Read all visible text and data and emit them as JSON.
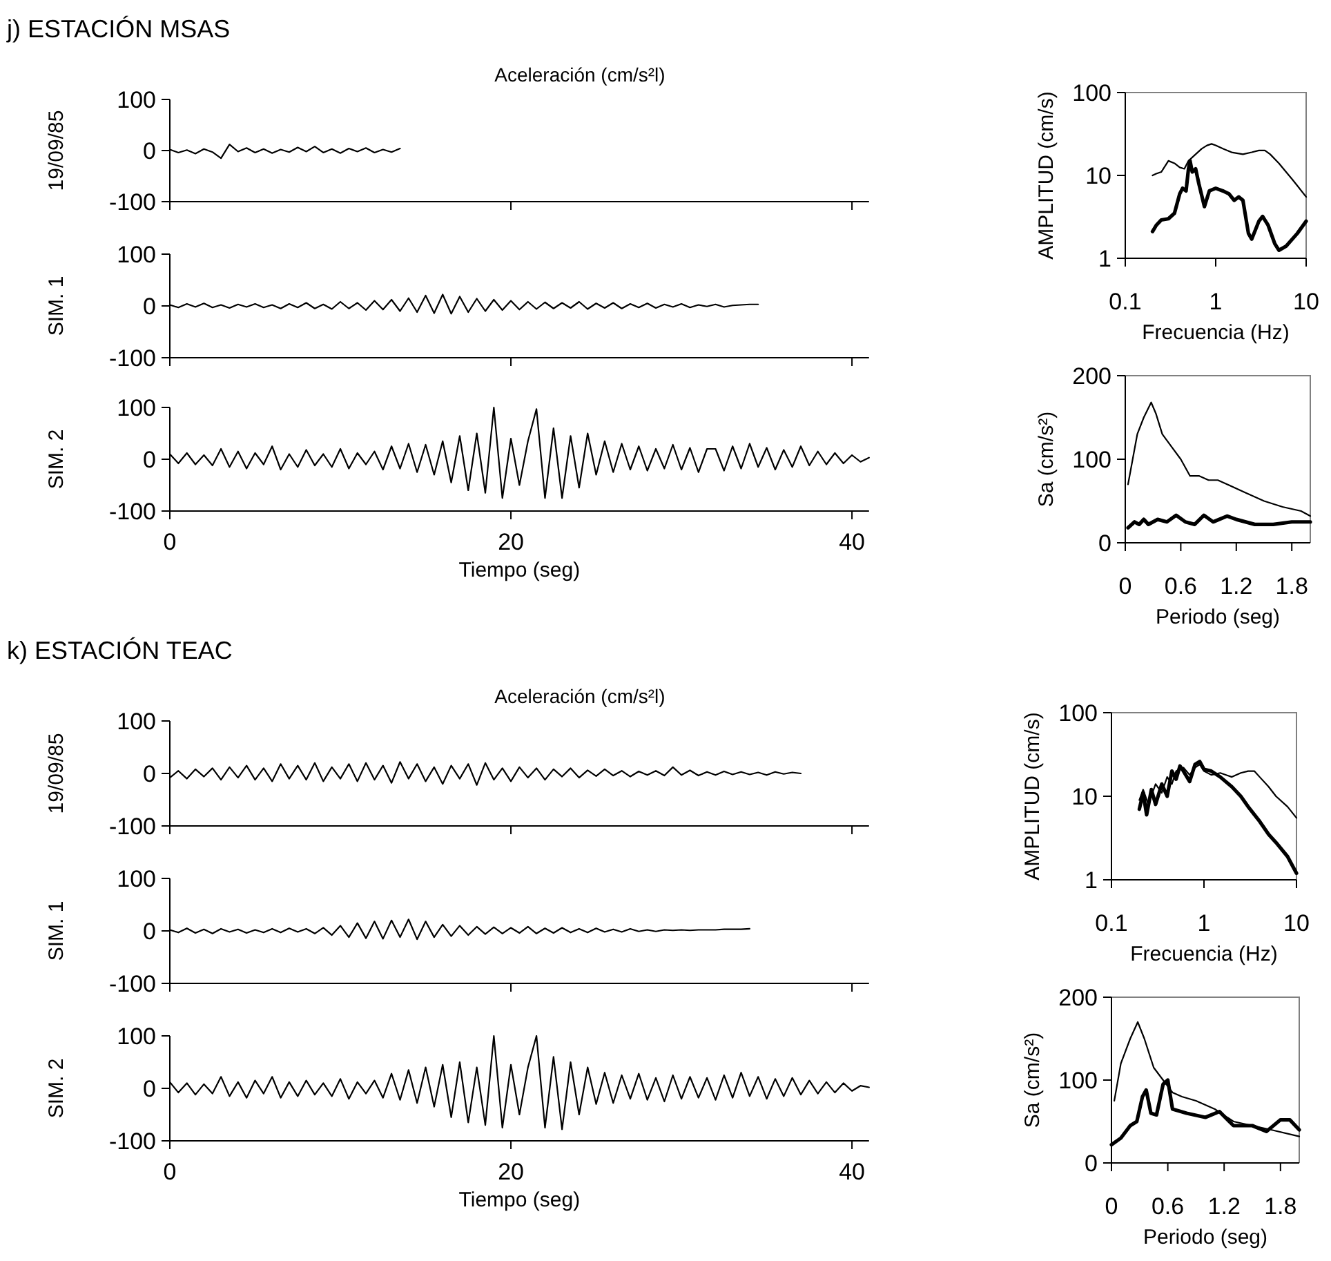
{
  "chart_data": [
    {
      "type": "line",
      "title": "j) ESTACIÓN MSAS",
      "subtitle": "Aceleración (cm/s²l)",
      "ylabel": "19/09/85",
      "xlim": [
        0,
        41
      ],
      "xticks": [
        0,
        20,
        40
      ],
      "ylim": [
        -100,
        100
      ],
      "yticks": [
        -100,
        0,
        100
      ],
      "tick_labels": "y",
      "series": [
        {
          "color": "#000000",
          "x": [
            0,
            0.5,
            1,
            1.5,
            2,
            2.5,
            3,
            3.5,
            4,
            4.5,
            5,
            5.5,
            6,
            6.5,
            7,
            7.5,
            8,
            8.5,
            9,
            9.5,
            10,
            10.5,
            11,
            11.5,
            12,
            12.5,
            13,
            13.5
          ],
          "values": [
            2,
            -4,
            1,
            -6,
            3,
            -3,
            -15,
            12,
            -2,
            5,
            -4,
            3,
            -5,
            2,
            -3,
            6,
            -2,
            8,
            -4,
            3,
            -5,
            4,
            -2,
            5,
            -4,
            2,
            -3,
            4
          ]
        }
      ]
    },
    {
      "type": "line",
      "ylabel": "SIM. 1",
      "xlim": [
        0,
        41
      ],
      "xticks": [
        0,
        20,
        40
      ],
      "ylim": [
        -100,
        100
      ],
      "yticks": [
        -100,
        0,
        100
      ],
      "tick_labels": "y",
      "series": [
        {
          "color": "#000000",
          "x": [
            0,
            0.5,
            1,
            1.5,
            2,
            2.5,
            3,
            3.5,
            4,
            4.5,
            5,
            5.5,
            6,
            6.5,
            7,
            7.5,
            8,
            8.5,
            9,
            9.5,
            10,
            10.5,
            11,
            11.5,
            12,
            12.5,
            13,
            13.5,
            14,
            14.5,
            15,
            15.5,
            16,
            16.5,
            17,
            17.5,
            18,
            18.5,
            19,
            19.5,
            20,
            20.5,
            21,
            21.5,
            22,
            22.5,
            23,
            23.5,
            24,
            24.5,
            25,
            25.5,
            26,
            26.5,
            27,
            27.5,
            28,
            28.5,
            29,
            29.5,
            30,
            30.5,
            31,
            31.5,
            32,
            32.5,
            33,
            33.5,
            34,
            34.5
          ],
          "values": [
            2,
            -3,
            4,
            -2,
            5,
            -3,
            2,
            -4,
            3,
            -2,
            4,
            -3,
            2,
            -5,
            4,
            -3,
            6,
            -5,
            3,
            -6,
            8,
            -5,
            6,
            -8,
            10,
            -7,
            12,
            -10,
            15,
            -12,
            20,
            -14,
            22,
            -15,
            18,
            -12,
            14,
            -10,
            12,
            -8,
            10,
            -7,
            8,
            -6,
            7,
            -5,
            6,
            -4,
            8,
            -6,
            5,
            -4,
            6,
            -5,
            4,
            -3,
            5,
            -4,
            3,
            -2,
            4,
            -3,
            2,
            -1,
            3,
            -2,
            1,
            2,
            3,
            3
          ]
        }
      ]
    },
    {
      "type": "line",
      "ylabel": "SIM. 2",
      "xlabel": "Tiempo (seg)",
      "xlim": [
        0,
        41
      ],
      "xticks": [
        0,
        20,
        40
      ],
      "ylim": [
        -100,
        100
      ],
      "yticks": [
        -100,
        0,
        100
      ],
      "series": [
        {
          "color": "#000000",
          "x": [
            0,
            0.5,
            1,
            1.5,
            2,
            2.5,
            3,
            3.5,
            4,
            4.5,
            5,
            5.5,
            6,
            6.5,
            7,
            7.5,
            8,
            8.5,
            9,
            9.5,
            10,
            10.5,
            11,
            11.5,
            12,
            12.5,
            13,
            13.5,
            14,
            14.5,
            15,
            15.5,
            16,
            16.5,
            17,
            17.5,
            18,
            18.5,
            19,
            19.5,
            20,
            20.5,
            21,
            21.5,
            22,
            22.5,
            23,
            23.5,
            24,
            24.5,
            25,
            25.5,
            26,
            26.5,
            27,
            27.5,
            28,
            28.5,
            29,
            29.5,
            30,
            30.5,
            31,
            31.5,
            32,
            32.5,
            33,
            33.5,
            34,
            34.5,
            35,
            35.5,
            36,
            36.5,
            37,
            37.5,
            38,
            38.5,
            39,
            39.5,
            40,
            40.5,
            41
          ],
          "values": [
            10,
            -8,
            12,
            -10,
            8,
            -12,
            20,
            -15,
            15,
            -18,
            12,
            -10,
            25,
            -20,
            10,
            -15,
            18,
            -12,
            10,
            -15,
            20,
            -18,
            12,
            -10,
            15,
            -20,
            25,
            -18,
            30,
            -25,
            28,
            -30,
            35,
            -45,
            45,
            -60,
            50,
            -65,
            100,
            -75,
            40,
            -50,
            35,
            97,
            -75,
            60,
            -75,
            45,
            -55,
            50,
            -30,
            35,
            -25,
            30,
            -20,
            25,
            -22,
            20,
            -18,
            28,
            -20,
            22,
            -25,
            20,
            20,
            -22,
            25,
            -18,
            30,
            -15,
            22,
            -20,
            18,
            -15,
            25,
            -12,
            15,
            -10,
            12,
            -8,
            8,
            -5,
            3
          ]
        }
      ]
    },
    {
      "type": "line",
      "ylabel": "AMPLITUD  (cm/s)",
      "xlabel": "Frecuencia (Hz)",
      "log": "xy",
      "xlim": [
        0.1,
        10
      ],
      "xticks": [
        0.1,
        1,
        10
      ],
      "ylim": [
        1,
        100
      ],
      "yticks": [
        1,
        10,
        100
      ],
      "series": [
        {
          "color": "#000000",
          "x": [
            0.2,
            0.22,
            0.25,
            0.3,
            0.35,
            0.4,
            0.45,
            0.5,
            0.6,
            0.7,
            0.8,
            0.9,
            1,
            1.2,
            1.5,
            2,
            2.5,
            3,
            3.5,
            4,
            5,
            6,
            7,
            8,
            10
          ],
          "values": [
            10,
            10.5,
            11,
            15,
            14,
            12.5,
            12,
            15,
            18,
            21,
            23,
            24,
            23,
            21,
            19,
            18,
            19,
            20,
            20,
            18,
            14,
            11,
            9,
            7.5,
            5.5
          ]
        },
        {
          "color": "#000000",
          "x": [
            0.2,
            0.22,
            0.25,
            0.3,
            0.35,
            0.4,
            0.43,
            0.47,
            0.5,
            0.52,
            0.55,
            0.6,
            0.65,
            0.75,
            0.85,
            1,
            1.2,
            1.4,
            1.6,
            1.8,
            2,
            2.3,
            2.5,
            3,
            3.3,
            3.8,
            4.5,
            5,
            6,
            8,
            10
          ],
          "values": [
            2.1,
            2.5,
            2.9,
            3,
            3.5,
            6,
            7,
            6.5,
            12,
            15,
            11,
            12,
            8,
            4.2,
            6.5,
            7,
            6.5,
            6,
            5,
            5.5,
            5,
            2,
            1.7,
            2.8,
            3.2,
            2.5,
            1.5,
            1.25,
            1.4,
            2,
            2.8
          ]
        }
      ]
    },
    {
      "type": "line",
      "ylabel": "Sa (cm/s²)",
      "xlabel": "Periodo (seg)",
      "xlim": [
        0,
        2
      ],
      "xticks": [
        0,
        0.6,
        1.2,
        1.8
      ],
      "ylim": [
        0,
        200
      ],
      "yticks": [
        0,
        100,
        200
      ],
      "series": [
        {
          "color": "#000000",
          "x": [
            0.03,
            0.08,
            0.13,
            0.2,
            0.28,
            0.33,
            0.4,
            0.5,
            0.6,
            0.7,
            0.8,
            0.9,
            1,
            1.1,
            1.3,
            1.5,
            1.7,
            1.9,
            2
          ],
          "values": [
            70,
            100,
            130,
            150,
            168,
            155,
            130,
            115,
            100,
            80,
            80,
            75,
            75,
            70,
            60,
            50,
            43,
            38,
            32
          ]
        },
        {
          "color": "#000000",
          "x": [
            0.03,
            0.1,
            0.15,
            0.2,
            0.25,
            0.35,
            0.45,
            0.55,
            0.65,
            0.75,
            0.85,
            0.95,
            1.1,
            1.2,
            1.4,
            1.6,
            1.8,
            2
          ],
          "values": [
            18,
            25,
            22,
            28,
            22,
            28,
            25,
            33,
            25,
            22,
            33,
            25,
            32,
            28,
            22,
            22,
            25,
            25
          ]
        }
      ]
    },
    {
      "type": "line",
      "title": "k) ESTACIÓN TEAC",
      "subtitle": "Aceleración (cm/s²l)",
      "ylabel": "19/09/85",
      "xlim": [
        0,
        41
      ],
      "xticks": [
        0,
        20,
        40
      ],
      "ylim": [
        -100,
        100
      ],
      "yticks": [
        -100,
        0,
        100
      ],
      "tick_labels": "y",
      "series": [
        {
          "color": "#000000",
          "x": [
            0,
            0.5,
            1,
            1.5,
            2,
            2.5,
            3,
            3.5,
            4,
            4.5,
            5,
            5.5,
            6,
            6.5,
            7,
            7.5,
            8,
            8.5,
            9,
            9.5,
            10,
            10.5,
            11,
            11.5,
            12,
            12.5,
            13,
            13.5,
            14,
            14.5,
            15,
            15.5,
            16,
            16.5,
            17,
            17.5,
            18,
            18.5,
            19,
            19.5,
            20,
            20.5,
            21,
            21.5,
            22,
            22.5,
            23,
            23.5,
            24,
            24.5,
            25,
            25.5,
            26,
            26.5,
            27,
            27.5,
            28,
            28.5,
            29,
            29.5,
            30,
            30.5,
            31,
            31.5,
            32,
            32.5,
            33,
            33.5,
            34,
            34.5,
            35,
            35.5,
            36,
            36.5,
            37
          ],
          "values": [
            -8,
            5,
            -10,
            8,
            -6,
            10,
            -12,
            12,
            -8,
            15,
            -12,
            10,
            -15,
            18,
            -10,
            15,
            -12,
            20,
            -15,
            12,
            -10,
            18,
            -15,
            20,
            -12,
            15,
            -18,
            22,
            -10,
            18,
            -15,
            12,
            -20,
            15,
            -10,
            18,
            -22,
            20,
            -12,
            10,
            -15,
            12,
            -8,
            10,
            -12,
            8,
            -6,
            10,
            -8,
            6,
            -5,
            8,
            -4,
            5,
            -6,
            4,
            -3,
            5,
            -4,
            12,
            -3,
            6,
            -4,
            3,
            -3,
            4,
            -2,
            3,
            -2,
            2,
            -3,
            3,
            -1,
            2,
            0
          ]
        }
      ]
    },
    {
      "type": "line",
      "ylabel": "SIM. 1",
      "xlim": [
        0,
        41
      ],
      "xticks": [
        0,
        20,
        40
      ],
      "ylim": [
        -100,
        100
      ],
      "yticks": [
        -100,
        0,
        100
      ],
      "tick_labels": "y",
      "series": [
        {
          "color": "#000000",
          "x": [
            0,
            0.5,
            1,
            1.5,
            2,
            2.5,
            3,
            3.5,
            4,
            4.5,
            5,
            5.5,
            6,
            6.5,
            7,
            7.5,
            8,
            8.5,
            9,
            9.5,
            10,
            10.5,
            11,
            11.5,
            12,
            12.5,
            13,
            13.5,
            14,
            14.5,
            15,
            15.5,
            16,
            16.5,
            17,
            17.5,
            18,
            18.5,
            19,
            19.5,
            20,
            20.5,
            21,
            21.5,
            22,
            22.5,
            23,
            23.5,
            24,
            24.5,
            25,
            25.5,
            26,
            26.5,
            27,
            27.5,
            28,
            28.5,
            29,
            29.5,
            30,
            30.5,
            31,
            31.5,
            32,
            32.5,
            33,
            33.5,
            34
          ],
          "values": [
            2,
            -3,
            5,
            -4,
            3,
            -5,
            4,
            -2,
            3,
            -4,
            2,
            -3,
            4,
            -3,
            5,
            -2,
            4,
            -5,
            6,
            -8,
            10,
            -12,
            15,
            -14,
            18,
            -15,
            20,
            -12,
            22,
            -16,
            18,
            -12,
            12,
            -10,
            10,
            -8,
            8,
            -6,
            7,
            -5,
            6,
            -4,
            8,
            -5,
            5,
            -4,
            6,
            -3,
            4,
            -3,
            5,
            -2,
            3,
            -2,
            4,
            -1,
            2,
            -1,
            2,
            1,
            2,
            1,
            2,
            2,
            2,
            3,
            3,
            3,
            4
          ]
        }
      ]
    },
    {
      "type": "line",
      "ylabel": "SIM. 2",
      "xlabel": "Tiempo (seg)",
      "xlim": [
        0,
        41
      ],
      "xticks": [
        0,
        20,
        40
      ],
      "ylim": [
        -100,
        100
      ],
      "yticks": [
        -100,
        0,
        100
      ],
      "series": [
        {
          "color": "#000000",
          "x": [
            0,
            0.5,
            1,
            1.5,
            2,
            2.5,
            3,
            3.5,
            4,
            4.5,
            5,
            5.5,
            6,
            6.5,
            7,
            7.5,
            8,
            8.5,
            9,
            9.5,
            10,
            10.5,
            11,
            11.5,
            12,
            12.5,
            13,
            13.5,
            14,
            14.5,
            15,
            15.5,
            16,
            16.5,
            17,
            17.5,
            18,
            18.5,
            19,
            19.5,
            20,
            20.5,
            21,
            21.5,
            22,
            22.5,
            23,
            23.5,
            24,
            24.5,
            25,
            25.5,
            26,
            26.5,
            27,
            27.5,
            28,
            28.5,
            29,
            29.5,
            30,
            30.5,
            31,
            31.5,
            32,
            32.5,
            33,
            33.5,
            34,
            34.5,
            35,
            35.5,
            36,
            36.5,
            37,
            37.5,
            38,
            38.5,
            39,
            39.5,
            40,
            40.5,
            41
          ],
          "values": [
            12,
            -8,
            10,
            -12,
            8,
            -10,
            22,
            -15,
            12,
            -18,
            15,
            -10,
            22,
            -18,
            12,
            -15,
            15,
            -12,
            10,
            -15,
            18,
            -20,
            12,
            -10,
            15,
            -18,
            28,
            -22,
            35,
            -28,
            40,
            -35,
            45,
            -55,
            50,
            -65,
            40,
            -70,
            100,
            -75,
            45,
            -50,
            40,
            100,
            -75,
            60,
            -78,
            50,
            -50,
            40,
            -30,
            30,
            -28,
            25,
            -20,
            28,
            -22,
            20,
            -25,
            25,
            -20,
            22,
            -18,
            20,
            -22,
            25,
            -18,
            30,
            -15,
            22,
            -20,
            18,
            -15,
            20,
            -12,
            15,
            -10,
            12,
            -8,
            10,
            -5,
            5,
            2
          ]
        }
      ]
    },
    {
      "type": "line",
      "ylabel": "AMPLITUD  (cm/s)",
      "xlabel": "Frecuencia (Hz)",
      "log": "xy",
      "xlim": [
        0.1,
        10
      ],
      "xticks": [
        0.1,
        1,
        10
      ],
      "ylim": [
        1,
        100
      ],
      "yticks": [
        1,
        10,
        100
      ],
      "series": [
        {
          "color": "#000000",
          "x": [
            0.2,
            0.22,
            0.25,
            0.3,
            0.35,
            0.4,
            0.45,
            0.5,
            0.6,
            0.7,
            0.8,
            0.9,
            1,
            1.2,
            1.5,
            2,
            2.5,
            3,
            3.5,
            4,
            5,
            6,
            8,
            10
          ],
          "values": [
            9,
            12,
            8,
            14,
            11,
            17,
            14,
            20,
            22,
            18,
            22,
            24,
            20,
            18,
            19,
            17,
            19,
            20,
            20,
            17,
            13,
            10,
            7.5,
            5.5
          ]
        },
        {
          "color": "#000000",
          "x": [
            0.2,
            0.22,
            0.24,
            0.27,
            0.3,
            0.35,
            0.4,
            0.45,
            0.5,
            0.55,
            0.6,
            0.7,
            0.8,
            0.9,
            1,
            1.2,
            1.5,
            2,
            2.5,
            3,
            4,
            5,
            6,
            8,
            10
          ],
          "values": [
            7,
            11,
            6,
            12,
            8,
            14,
            10,
            20,
            16,
            23,
            20,
            15,
            24,
            26,
            21,
            20,
            17,
            13,
            10,
            7.5,
            5,
            3.5,
            2.8,
            1.9,
            1.2
          ]
        }
      ]
    },
    {
      "type": "line",
      "ylabel": "Sa (cm/s²)",
      "xlabel": "Periodo (seg)",
      "xlim": [
        0,
        2
      ],
      "xticks": [
        0,
        0.6,
        1.2,
        1.8
      ],
      "ylim": [
        0,
        200
      ],
      "yticks": [
        0,
        100,
        200
      ],
      "series": [
        {
          "color": "#000000",
          "x": [
            0.03,
            0.1,
            0.2,
            0.28,
            0.35,
            0.45,
            0.55,
            0.65,
            0.75,
            0.9,
            1.1,
            1.3,
            1.5,
            1.7,
            2
          ],
          "values": [
            75,
            120,
            150,
            170,
            150,
            115,
            100,
            85,
            80,
            75,
            65,
            50,
            45,
            40,
            32
          ]
        },
        {
          "color": "#000000",
          "x": [
            0,
            0.1,
            0.2,
            0.27,
            0.33,
            0.37,
            0.42,
            0.48,
            0.55,
            0.6,
            0.65,
            0.8,
            1,
            1.15,
            1.3,
            1.5,
            1.65,
            1.8,
            1.9,
            2
          ],
          "values": [
            22,
            30,
            45,
            50,
            80,
            88,
            60,
            58,
            95,
            100,
            65,
            60,
            55,
            62,
            45,
            45,
            38,
            52,
            52,
            40
          ]
        }
      ]
    }
  ]
}
